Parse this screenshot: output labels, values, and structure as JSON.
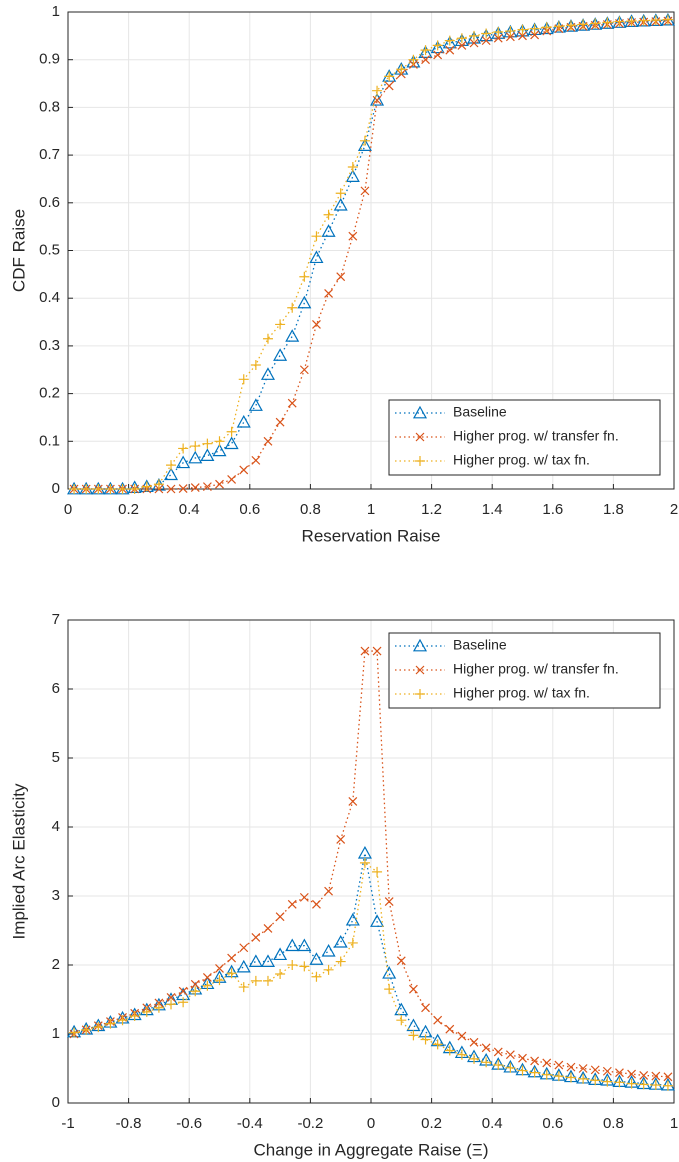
{
  "chart_data": [
    {
      "type": "line",
      "xlabel": "Reservation Raise",
      "ylabel": "CDF Raise",
      "x": [
        0.02,
        0.06,
        0.1,
        0.14,
        0.18,
        0.22,
        0.26,
        0.3,
        0.34,
        0.38,
        0.42,
        0.46,
        0.5,
        0.54,
        0.58,
        0.62,
        0.66,
        0.7,
        0.74,
        0.78,
        0.82,
        0.86,
        0.9,
        0.94,
        0.98,
        1.02,
        1.06,
        1.1,
        1.14,
        1.18,
        1.22,
        1.26,
        1.3,
        1.34,
        1.38,
        1.42,
        1.46,
        1.5,
        1.54,
        1.58,
        1.62,
        1.66,
        1.7,
        1.74,
        1.78,
        1.82,
        1.86,
        1.9,
        1.94,
        1.98
      ],
      "series": [
        {
          "name": "Baseline",
          "color": "#0072BD",
          "marker": "triangle",
          "values": [
            0,
            0,
            0,
            0,
            0,
            0.003,
            0.005,
            0.008,
            0.03,
            0.055,
            0.065,
            0.07,
            0.08,
            0.095,
            0.14,
            0.175,
            0.24,
            0.28,
            0.32,
            0.39,
            0.485,
            0.54,
            0.595,
            0.655,
            0.72,
            0.815,
            0.865,
            0.88,
            0.895,
            0.915,
            0.925,
            0.935,
            0.94,
            0.945,
            0.95,
            0.955,
            0.958,
            0.96,
            0.963,
            0.965,
            0.968,
            0.97,
            0.972,
            0.974,
            0.976,
            0.978,
            0.98,
            0.981,
            0.982,
            0.983
          ]
        },
        {
          "name": "Higher prog. w/ transfer fn.",
          "color": "#D95319",
          "marker": "x",
          "values": [
            0,
            0,
            0,
            0,
            0,
            0,
            0,
            0,
            0,
            0.001,
            0.003,
            0.005,
            0.01,
            0.02,
            0.04,
            0.06,
            0.1,
            0.14,
            0.18,
            0.25,
            0.345,
            0.41,
            0.445,
            0.53,
            0.625,
            0.815,
            0.845,
            0.87,
            0.89,
            0.9,
            0.91,
            0.92,
            0.93,
            0.935,
            0.94,
            0.945,
            0.948,
            0.95,
            0.952,
            0.96,
            0.965,
            0.968,
            0.97,
            0.972,
            0.974,
            0.976,
            0.978,
            0.979,
            0.98,
            0.981
          ]
        },
        {
          "name": "Higher prog. w/ tax fn.",
          "color": "#EDB120",
          "marker": "plus",
          "values": [
            0,
            0,
            0,
            0,
            0,
            0,
            0.005,
            0.01,
            0.05,
            0.085,
            0.09,
            0.095,
            0.1,
            0.12,
            0.23,
            0.26,
            0.315,
            0.345,
            0.38,
            0.445,
            0.53,
            0.575,
            0.62,
            0.675,
            0.73,
            0.835,
            0.865,
            0.88,
            0.9,
            0.92,
            0.93,
            0.94,
            0.945,
            0.95,
            0.955,
            0.958,
            0.96,
            0.963,
            0.965,
            0.968,
            0.97,
            0.972,
            0.974,
            0.976,
            0.978,
            0.98,
            0.981,
            0.982,
            0.983,
            0.984
          ]
        }
      ],
      "xlim": [
        0,
        2
      ],
      "xticks": [
        0,
        0.2,
        0.4,
        0.6,
        0.8,
        1,
        1.2,
        1.4,
        1.6,
        1.8,
        2
      ],
      "ylim": [
        0,
        1
      ],
      "yticks": [
        0,
        0.1,
        0.2,
        0.3,
        0.4,
        0.5,
        0.6,
        0.7,
        0.8,
        0.9,
        1
      ],
      "grid": true,
      "legend": "southeast"
    },
    {
      "type": "line",
      "xlabel": "Change in Aggregate Raise (Ξ)",
      "ylabel": "Implied Arc Elasticity",
      "x": [
        -0.98,
        -0.94,
        -0.9,
        -0.86,
        -0.82,
        -0.78,
        -0.74,
        -0.7,
        -0.66,
        -0.62,
        -0.58,
        -0.54,
        -0.5,
        -0.46,
        -0.42,
        -0.38,
        -0.34,
        -0.3,
        -0.26,
        -0.22,
        -0.18,
        -0.14,
        -0.1,
        -0.06,
        -0.02,
        0.02,
        0.06,
        0.1,
        0.14,
        0.18,
        0.22,
        0.26,
        0.3,
        0.34,
        0.38,
        0.42,
        0.46,
        0.5,
        0.54,
        0.58,
        0.62,
        0.66,
        0.7,
        0.74,
        0.78,
        0.82,
        0.86,
        0.9,
        0.94,
        0.98
      ],
      "series": [
        {
          "name": "Baseline",
          "color": "#0072BD",
          "marker": "triangle",
          "values": [
            1.03,
            1.07,
            1.12,
            1.17,
            1.23,
            1.28,
            1.35,
            1.42,
            1.5,
            1.57,
            1.65,
            1.73,
            1.82,
            1.9,
            1.97,
            2.05,
            2.05,
            2.15,
            2.28,
            2.28,
            2.08,
            2.2,
            2.33,
            2.65,
            3.62,
            2.63,
            1.88,
            1.35,
            1.12,
            1.03,
            0.9,
            0.8,
            0.73,
            0.67,
            0.62,
            0.56,
            0.52,
            0.48,
            0.45,
            0.42,
            0.4,
            0.38,
            0.36,
            0.34,
            0.33,
            0.31,
            0.3,
            0.28,
            0.27,
            0.26
          ]
        },
        {
          "name": "Higher prog. w/ transfer fn.",
          "color": "#D95319",
          "marker": "x",
          "values": [
            1.0,
            1.06,
            1.12,
            1.18,
            1.24,
            1.3,
            1.38,
            1.45,
            1.53,
            1.62,
            1.72,
            1.82,
            1.95,
            2.1,
            2.25,
            2.4,
            2.53,
            2.7,
            2.88,
            2.98,
            2.88,
            3.07,
            3.82,
            4.37,
            6.55,
            6.55,
            2.92,
            2.06,
            1.65,
            1.38,
            1.2,
            1.07,
            0.97,
            0.88,
            0.8,
            0.74,
            0.7,
            0.65,
            0.61,
            0.58,
            0.55,
            0.52,
            0.5,
            0.48,
            0.46,
            0.44,
            0.42,
            0.4,
            0.39,
            0.38
          ]
        },
        {
          "name": "Higher prog. w/ tax fn.",
          "color": "#EDB120",
          "marker": "plus",
          "values": [
            1.02,
            1.06,
            1.1,
            1.15,
            1.2,
            1.26,
            1.32,
            1.38,
            1.43,
            1.46,
            1.62,
            1.7,
            1.78,
            1.88,
            1.68,
            1.77,
            1.77,
            1.87,
            2.0,
            1.98,
            1.83,
            1.93,
            2.05,
            2.32,
            3.48,
            3.35,
            1.65,
            1.2,
            0.98,
            0.92,
            0.85,
            0.76,
            0.7,
            0.64,
            0.59,
            0.55,
            0.51,
            0.47,
            0.44,
            0.41,
            0.39,
            0.37,
            0.35,
            0.33,
            0.31,
            0.3,
            0.28,
            0.27,
            0.26,
            0.25
          ]
        }
      ],
      "xlim": [
        -1,
        1
      ],
      "xticks": [
        -1,
        -0.8,
        -0.6,
        -0.4,
        -0.2,
        0,
        0.2,
        0.4,
        0.6,
        0.8,
        1
      ],
      "ylim": [
        0,
        7
      ],
      "yticks": [
        0,
        1,
        2,
        3,
        4,
        5,
        6,
        7
      ],
      "grid": true,
      "legend": "northeast"
    }
  ]
}
